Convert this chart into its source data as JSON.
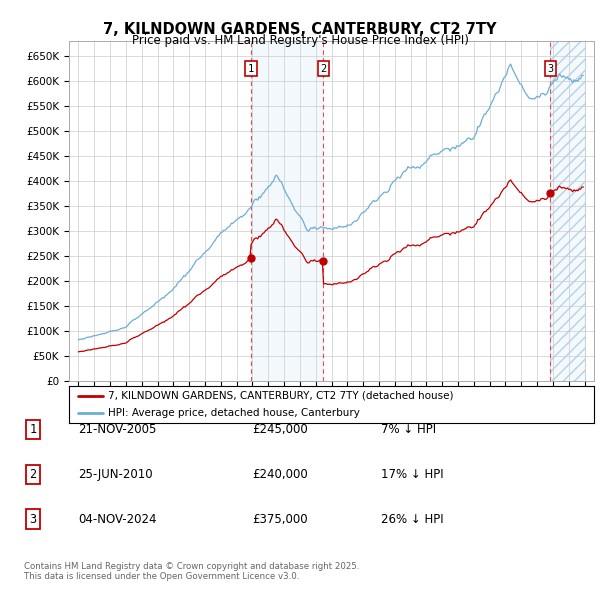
{
  "title": "7, KILNDOWN GARDENS, CANTERBURY, CT2 7TY",
  "subtitle": "Price paid vs. HM Land Registry's House Price Index (HPI)",
  "ylabel_ticks": [
    "£0",
    "£50K",
    "£100K",
    "£150K",
    "£200K",
    "£250K",
    "£300K",
    "£350K",
    "£400K",
    "£450K",
    "£500K",
    "£550K",
    "£600K",
    "£650K"
  ],
  "ylim": [
    0,
    680000
  ],
  "sale_dates_num": [
    2005.896,
    2010.486,
    2024.843
  ],
  "sale_prices": [
    245000,
    240000,
    375000
  ],
  "sale_labels": [
    "1",
    "2",
    "3"
  ],
  "legend_entries": [
    "7, KILNDOWN GARDENS, CANTERBURY, CT2 7TY (detached house)",
    "HPI: Average price, detached house, Canterbury"
  ],
  "table_rows": [
    [
      "1",
      "21-NOV-2005",
      "£245,000",
      "7% ↓ HPI"
    ],
    [
      "2",
      "25-JUN-2010",
      "£240,000",
      "17% ↓ HPI"
    ],
    [
      "3",
      "04-NOV-2024",
      "£375,000",
      "26% ↓ HPI"
    ]
  ],
  "footnote": "Contains HM Land Registry data © Crown copyright and database right 2025.\nThis data is licensed under the Open Government Licence v3.0.",
  "hpi_color": "#6baed6",
  "price_color": "#c00000",
  "background_color": "#ffffff",
  "grid_color": "#cccccc"
}
